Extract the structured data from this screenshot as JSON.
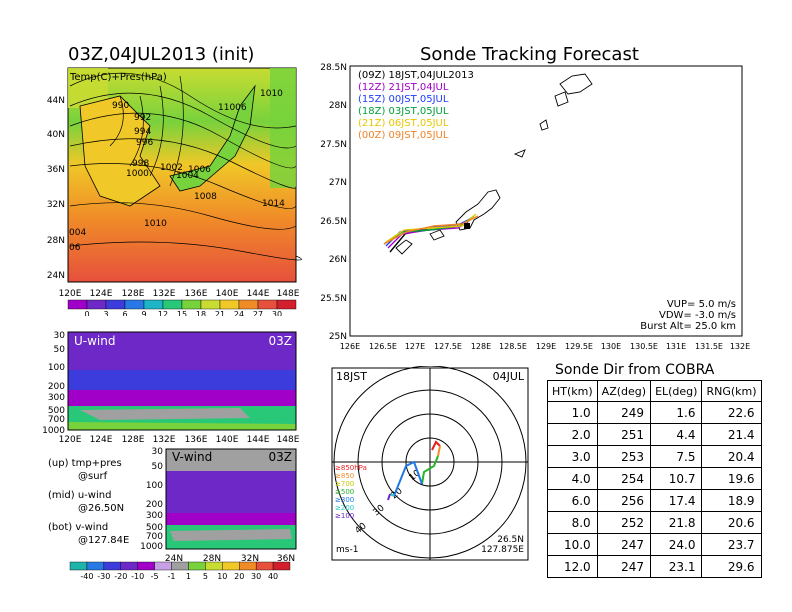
{
  "map_panel": {
    "title": "03Z,04JUL2013 (init)",
    "label": "Temp(C)+Pres(hPa)",
    "lat_ticks": [
      "44N",
      "40N",
      "36N",
      "32N",
      "28N",
      "24N"
    ],
    "lon_ticks": [
      "120E",
      "124E",
      "128E",
      "132E",
      "136E",
      "140E",
      "144E",
      "148E"
    ],
    "isobar_labels": [
      "1010",
      "990",
      "992",
      "994",
      "996",
      "998",
      "1000",
      "1002",
      "1004",
      "1006",
      "11006",
      "1008",
      "1014",
      "1010",
      "004",
      "06"
    ],
    "colorbar_ticks": [
      "0",
      "3",
      "6",
      "9",
      "12",
      "15",
      "18",
      "21",
      "24",
      "27",
      "30"
    ],
    "colorbar_colors": [
      "#a000c8",
      "#6e28c8",
      "#3c3cdc",
      "#2878e6",
      "#1eb4c8",
      "#28c878",
      "#78d23c",
      "#c8dc32",
      "#f0c828",
      "#f08c28",
      "#e6503c",
      "#d21e2d"
    ]
  },
  "uwind_panel": {
    "label": "U-wind",
    "time": "03Z",
    "pres_ticks": [
      "30",
      "50",
      "100",
      "200",
      "300",
      "500",
      "700",
      "1000"
    ],
    "lon_ticks": [
      "120E",
      "124E",
      "128E",
      "132E",
      "136E",
      "140E",
      "144E",
      "148E"
    ]
  },
  "vwind_panel": {
    "label": "V-wind",
    "time": "03Z",
    "pres_ticks": [
      "30",
      "50",
      "100",
      "200",
      "300",
      "500",
      "700",
      "1000"
    ],
    "lat_ticks": [
      "24N",
      "28N",
      "32N",
      "36N"
    ],
    "colorbar_ticks": [
      "-40",
      "-30",
      "-20",
      "-10",
      "-5",
      "-1",
      "1",
      "5",
      "10",
      "20",
      "30",
      "40"
    ],
    "colorbar_colors": [
      "#1eb4aa",
      "#2878e6",
      "#3c3cdc",
      "#6e28c8",
      "#a000c8",
      "#c8a0e6",
      "#a0a0a0",
      "#78d23c",
      "#c8dc32",
      "#f0c828",
      "#f08c28",
      "#e6503c",
      "#d21e2d"
    ]
  },
  "legend_text": {
    "line1": "(up) tmp+pres",
    "line2": "@surf",
    "line3": "(mid) u-wind",
    "line4": "@26.50N",
    "line5": "(bot) v-wind",
    "line6": "@127.84E"
  },
  "forecast_panel": {
    "title": "Sonde Tracking Forecast",
    "lat_ticks": [
      "28.5N",
      "28N",
      "27.5N",
      "27N",
      "26.5N",
      "26N",
      "25.5N",
      "25N"
    ],
    "lon_ticks": [
      "126E",
      "126.5E",
      "127E",
      "127.5E",
      "128E",
      "128.5E",
      "129E",
      "129.5E",
      "130E",
      "130.5E",
      "131E",
      "131.5E",
      "132E"
    ],
    "launches": [
      {
        "label": "(09Z)  18JST,04JUL2013",
        "color": "#000000"
      },
      {
        "label": "(12Z)  21JST,04JUL",
        "color": "#a000c8"
      },
      {
        "label": "(15Z)  00JST,05JUL",
        "color": "#1e3cff"
      },
      {
        "label": "(18Z)  03JST,05JUL",
        "color": "#00a03c"
      },
      {
        "label": "(21Z)  06JST,05JUL",
        "color": "#e6c800"
      },
      {
        "label": "(00Z)  09JST,05JUL",
        "color": "#f08228"
      }
    ],
    "params": {
      "vup": "VUP=  5.0  m/s",
      "vdw": "VDW= -3.0  m/s",
      "burst": "Burst Alt=  25.0  km"
    }
  },
  "polar_panel": {
    "time": "18JST",
    "date": "04JUL",
    "units": "ms-1",
    "location_lat": "26.5N",
    "location_lon": "127.875E",
    "ring_labels": [
      "10",
      "20",
      "30",
      "40"
    ],
    "levels": [
      {
        "label": "≥850hPa",
        "color": "#e61e1e"
      },
      {
        "label": "≥850",
        "color": "#f08c28"
      },
      {
        "label": "≥700",
        "color": "#c8c800"
      },
      {
        "label": "≥500",
        "color": "#28b428"
      },
      {
        "label": "≥300",
        "color": "#1e78e6"
      },
      {
        "label": "≥200",
        "color": "#28c8c8"
      },
      {
        "label": "≥100",
        "color": "#6e28c8"
      }
    ]
  },
  "cobra_panel": {
    "title": "Sonde Dir from COBRA",
    "headers": [
      "HT(km)",
      "AZ(deg)",
      "EL(deg)",
      "RNG(km)"
    ],
    "rows": [
      [
        "1.0",
        "249",
        "1.6",
        "22.6"
      ],
      [
        "2.0",
        "251",
        "4.4",
        "21.4"
      ],
      [
        "3.0",
        "253",
        "7.5",
        "20.4"
      ],
      [
        "4.0",
        "254",
        "10.7",
        "19.6"
      ],
      [
        "6.0",
        "256",
        "17.4",
        "18.9"
      ],
      [
        "8.0",
        "252",
        "21.8",
        "20.6"
      ],
      [
        "10.0",
        "247",
        "24.0",
        "23.7"
      ],
      [
        "12.0",
        "247",
        "23.1",
        "29.6"
      ]
    ]
  },
  "chart_data": [
    {
      "type": "heatmap",
      "title": "03Z,04JUL2013 (init)",
      "subtitle": "Temp(C)+Pres(hPa)",
      "colorbar": [
        "0",
        "3",
        "6",
        "9",
        "12",
        "15",
        "18",
        "21",
        "24",
        "27",
        "30"
      ]
    },
    {
      "type": "heatmap",
      "title": "U-wind",
      "subtitle": "03Z"
    },
    {
      "type": "heatmap",
      "title": "V-wind",
      "subtitle": "03Z",
      "colorbar": [
        "-40",
        "-30",
        "-20",
        "-10",
        "-5",
        "-1",
        "1",
        "5",
        "10",
        "20",
        "30",
        "40"
      ]
    },
    {
      "type": "table",
      "title": "Sonde Dir from COBRA",
      "columns": [
        "HT(km)",
        "AZ(deg)",
        "EL(deg)",
        "RNG(km)"
      ],
      "rows": [
        [
          1.0,
          249,
          1.6,
          22.6
        ],
        [
          2.0,
          251,
          4.4,
          21.4
        ],
        [
          3.0,
          253,
          7.5,
          20.4
        ],
        [
          4.0,
          254,
          10.7,
          19.6
        ],
        [
          6.0,
          256,
          17.4,
          18.9
        ],
        [
          8.0,
          252,
          21.8,
          20.6
        ],
        [
          10.0,
          247,
          24.0,
          23.7
        ],
        [
          12.0,
          247,
          23.1,
          29.6
        ]
      ]
    }
  ]
}
